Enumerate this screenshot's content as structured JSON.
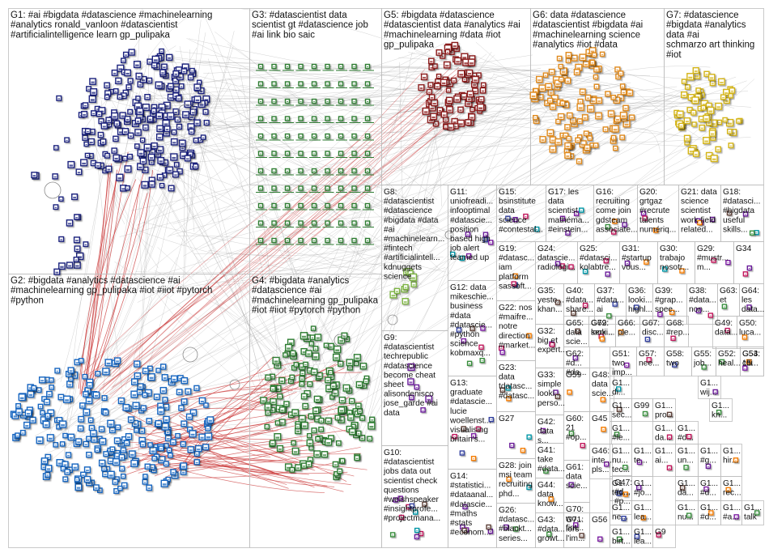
{
  "groups": [
    {
      "id": "G1",
      "lines": [
        "G1: #ai #bigdata #datascience #machinelearning",
        "#analytics ronald_vanloon #datascientist",
        "#artificialintelligence learn gp_pulipaka"
      ],
      "color": "#1f2a6b"
    },
    {
      "id": "G2",
      "lines": [
        "G2: #bigdata #analytics #datascience #ai",
        "#machinelearning gp_pulipaka #iot #iiot #pytorch",
        "#python"
      ],
      "color": "#1f6fb5"
    },
    {
      "id": "G3",
      "lines": [
        "G3: #datascientist data",
        "scientist gt #datascience job",
        "#ai link bio saic"
      ],
      "color": "#2e7d32"
    },
    {
      "id": "G4",
      "lines": [
        "G4: #bigdata #analytics",
        "#datascience #ai",
        "#machinelearning gp_pulipaka",
        "#iot #iiot #pytorch #python"
      ],
      "color": "#2e9d2e"
    },
    {
      "id": "G5",
      "lines": [
        "G5: #bigdata #datascience",
        "#datascientist data #analytics #ai",
        "#machinelearning #data #iot",
        "gp_pulipaka"
      ],
      "color": "#a01818"
    },
    {
      "id": "G6",
      "lines": [
        "G6: data #datascience",
        "#datascientist #bigdata #ai",
        "#machinelearning science",
        "#analytics #iot #data"
      ],
      "color": "#e08a1e"
    },
    {
      "id": "G7",
      "lines": [
        "G7: #datascience",
        "#bigdata #analytics",
        "data #ai",
        "schmarzo art thinking",
        "#iot"
      ],
      "color": "#e6c21a"
    },
    {
      "id": "G8",
      "lines": [
        "G8:",
        "#datascientist",
        "#datascience",
        "#bigdata #data",
        "#ai",
        "#machinelearn...",
        "#fintech",
        "#artificialintell...",
        "kdnuggets",
        "science"
      ],
      "color": "#8bc34a"
    },
    {
      "id": "G9",
      "lines": [
        "G9:",
        "#datascientist",
        "techrepublic",
        "#datascience",
        "become cheat",
        "sheet",
        "alisondenisco",
        "jose_garde #ai",
        "data"
      ],
      "color": "#7b3fa0"
    },
    {
      "id": "G10",
      "lines": [
        "G10:",
        "#datascientist",
        "jobs data out",
        "scientist check",
        "questions",
        "#welshspeaker",
        "#insightprofe...",
        "#projectmana..."
      ],
      "color": "#555555"
    },
    {
      "id": "G11",
      "lines": [
        "G11:",
        "uniofreadi...",
        "infooptimal",
        "#datascie...",
        "position",
        "based high",
        "job alert",
        "teamed up"
      ],
      "color": "#999999"
    },
    {
      "id": "G12",
      "lines": [
        "G12: data",
        "mikeschie...",
        "business",
        "#data",
        "#datascie...",
        "#python",
        "science",
        "kobmaxq..."
      ],
      "color": "#999999"
    },
    {
      "id": "G13",
      "lines": [
        "G13:",
        "graduate",
        "#datascie...",
        "lucie",
        "woellenst...",
        "visualising",
        "britain's..."
      ],
      "color": "#999999"
    },
    {
      "id": "G14",
      "lines": [
        "G14:",
        "#statistici...",
        "#dataanal...",
        "#datascie...",
        "#maths",
        "#stats",
        "#econom..."
      ],
      "color": "#999999"
    },
    {
      "id": "G15",
      "lines": [
        "G15:",
        "bsinstitute",
        "data",
        "science",
        "#contestal..."
      ],
      "color": "#999999"
    },
    {
      "id": "G16",
      "lines": [
        "G16:",
        "recruiting",
        "come join",
        "gdsteam",
        "associate..."
      ],
      "color": "#999999"
    },
    {
      "id": "G17",
      "lines": [
        "G17: les",
        "data",
        "scientist",
        "mathéma...",
        "#einstein..."
      ],
      "color": "#999999"
    },
    {
      "id": "G18",
      "lines": [
        "G18:",
        "#datasci...",
        "#bigdata",
        "useful",
        "skills..."
      ],
      "color": "#999999"
    },
    {
      "id": "G19",
      "lines": [
        "G19:",
        "#datasc...",
        "iam",
        "platform",
        "sassoft..."
      ],
      "color": "#999999"
    },
    {
      "id": "G20",
      "lines": [
        "G20:",
        "grtgaz",
        "#recrute",
        "talents",
        "numériq..."
      ],
      "color": "#999999"
    },
    {
      "id": "G21",
      "lines": [
        "G21: data",
        "science",
        "scientist",
        "work field",
        "related..."
      ],
      "color": "#999999"
    },
    {
      "id": "G22",
      "lines": [
        "G22: nos",
        "#maifre...",
        "notre",
        "direction",
        "#market..."
      ],
      "color": "#999999"
    },
    {
      "id": "G23",
      "lines": [
        "G23:",
        "data",
        "tdatasc...",
        "#datasc..."
      ],
      "color": "#999999"
    },
    {
      "id": "G24",
      "lines": [
        "G24:",
        "datascie...",
        "radiologi..."
      ],
      "color": "#999999"
    },
    {
      "id": "G25",
      "lines": [
        "G25:",
        "#datasci...",
        "kolabtre..."
      ],
      "color": "#999999"
    },
    {
      "id": "G26",
      "lines": [
        "G26:",
        "#datasc...",
        "#blackt...",
        "series..."
      ],
      "color": "#999999"
    },
    {
      "id": "G27",
      "lines": [
        "G27"
      ],
      "color": "#999999"
    },
    {
      "id": "G28",
      "lines": [
        "G28: join",
        "msi team",
        "recruiting",
        "phd..."
      ],
      "color": "#999999"
    },
    {
      "id": "G29",
      "lines": [
        "G29:",
        "#mustr...",
        "m..."
      ],
      "color": "#999999"
    },
    {
      "id": "G30",
      "lines": [
        "G30:",
        "trabajo",
        "nosotr..."
      ],
      "color": "#999999"
    },
    {
      "id": "G31",
      "lines": [
        "G31:",
        "#startup",
        "vous..."
      ],
      "color": "#999999"
    },
    {
      "id": "G32",
      "lines": [
        "G32:",
        "big et",
        "expert..."
      ],
      "color": "#999999"
    },
    {
      "id": "G33",
      "lines": [
        "G33:",
        "simple",
        "looki...",
        "perso..."
      ],
      "color": "#999999"
    },
    {
      "id": "G34",
      "lines": [
        "G34"
      ],
      "color": "#999999"
    },
    {
      "id": "G35",
      "lines": [
        "G35:",
        "yeste...",
        "khan..."
      ],
      "color": "#999999"
    },
    {
      "id": "G36",
      "lines": [
        "G36:",
        "looki...",
        "highl..."
      ],
      "color": "#999999"
    },
    {
      "id": "G37",
      "lines": [
        "G37:",
        "#data...",
        "ai"
      ],
      "color": "#999999"
    },
    {
      "id": "G38",
      "lines": [
        "G38:",
        "#data...",
        "non..."
      ],
      "color": "#999999"
    },
    {
      "id": "G39",
      "lines": [
        "G39:",
        "#grap...",
        "spee..."
      ],
      "color": "#999999"
    },
    {
      "id": "G40",
      "lines": [
        "G40:",
        "#data...",
        "share..."
      ],
      "color": "#999999"
    },
    {
      "id": "G41",
      "lines": [
        "G41:",
        "take",
        "#data..."
      ],
      "color": "#999999"
    },
    {
      "id": "G42",
      "lines": [
        "G42:",
        "data",
        "s..."
      ],
      "color": "#999999"
    },
    {
      "id": "G43",
      "lines": [
        "G43:",
        "#data...",
        "growt..."
      ],
      "color": "#999999"
    },
    {
      "id": "G44",
      "lines": [
        "G44:",
        "data",
        "know..."
      ],
      "color": "#999999"
    },
    {
      "id": "G45",
      "lines": [
        "G45"
      ],
      "color": "#999999"
    },
    {
      "id": "G46",
      "lines": [
        "G46:",
        "inte...",
        "pls..."
      ],
      "color": "#999999"
    },
    {
      "id": "G47",
      "lines": [
        "G47:",
        "#d...",
        "#p..."
      ],
      "color": "#999999"
    },
    {
      "id": "G48",
      "lines": [
        "G48:",
        "data",
        "scie..."
      ],
      "color": "#999999"
    },
    {
      "id": "G49",
      "lines": [
        "G49:",
        "data..."
      ],
      "color": "#999999"
    },
    {
      "id": "G50",
      "lines": [
        "G50:",
        "luca..."
      ],
      "color": "#999999"
    },
    {
      "id": "G51",
      "lines": [
        "G51:",
        "two",
        "imp..."
      ],
      "color": "#999999"
    },
    {
      "id": "G52",
      "lines": [
        "G52:",
        "heal..."
      ],
      "color": "#999999"
    },
    {
      "id": "G53",
      "lines": [
        "G53:",
        "citi"
      ],
      "color": "#999999"
    },
    {
      "id": "G54",
      "lines": [
        "G54:",
        "15..."
      ],
      "color": "#999999"
    },
    {
      "id": "G55",
      "lines": [
        "G55:",
        "job..."
      ],
      "color": "#999999"
    },
    {
      "id": "G56",
      "lines": [
        "G56"
      ],
      "color": "#999999"
    },
    {
      "id": "G57",
      "lines": [
        "G57:",
        "nee..."
      ],
      "color": "#999999"
    },
    {
      "id": "G58",
      "lines": [
        "G58:",
        "two"
      ],
      "color": "#999999"
    },
    {
      "id": "G59",
      "lines": [
        "G59"
      ],
      "color": "#999999"
    },
    {
      "id": "G60",
      "lines": [
        "G60:",
        "21",
        "#op..."
      ],
      "color": "#999999"
    },
    {
      "id": "G61",
      "lines": [
        "G61:",
        "data",
        "scie..."
      ],
      "color": "#999999"
    },
    {
      "id": "G62",
      "lines": [
        "G62:",
        "#d...",
        "#da..."
      ],
      "color": "#999999"
    },
    {
      "id": "G63",
      "lines": [
        "G63:",
        "et"
      ],
      "color": "#999999"
    },
    {
      "id": "G64",
      "lines": [
        "G64:",
        "les",
        "data..."
      ],
      "color": "#999999"
    },
    {
      "id": "G65",
      "lines": [
        "G65:",
        "data",
        "scie..."
      ],
      "color": "#999999"
    },
    {
      "id": "G66",
      "lines": [
        "G66:",
        "ple..."
      ],
      "color": "#999999"
    },
    {
      "id": "G67",
      "lines": [
        "G67:",
        "disc..."
      ],
      "color": "#999999"
    },
    {
      "id": "G68",
      "lines": [
        "G68:",
        "#rep..."
      ],
      "color": "#999999"
    },
    {
      "id": "G69",
      "lines": [
        "G69:",
        "looki..."
      ],
      "color": "#999999"
    },
    {
      "id": "G70",
      "lines": [
        "G70:",
        "wo...",
        "fint..."
      ],
      "color": "#999999"
    },
    {
      "id": "G71",
      "lines": [
        "G71:",
        "lors",
        "l'im..."
      ],
      "color": "#999999"
    },
    {
      "id": "G72",
      "lines": [
        "G72:",
        "seni..."
      ],
      "color": "#999999"
    },
    {
      "id": "G1a",
      "lines": [
        "G1...",
        "di..."
      ],
      "color": "#999999"
    },
    {
      "id": "G1b",
      "lines": [
        "G1...",
        "wij..."
      ],
      "color": "#999999"
    },
    {
      "id": "G1c",
      "lines": [
        "G1...",
        "sec..."
      ],
      "color": "#999999"
    },
    {
      "id": "G1d",
      "lines": [
        "G1...",
        "pro..."
      ],
      "color": "#999999"
    },
    {
      "id": "G1e",
      "lines": [
        "G1...",
        "kn..."
      ],
      "color": "#999999"
    },
    {
      "id": "G1f",
      "lines": [
        "G1...",
        "te..."
      ],
      "color": "#999999"
    },
    {
      "id": "G1g",
      "lines": [
        "G1...",
        "#le..."
      ],
      "color": "#999999"
    },
    {
      "id": "G1h",
      "lines": [
        "G1...",
        "da..."
      ],
      "color": "#999999"
    },
    {
      "id": "G1i",
      "lines": [
        "G1...",
        "#d..."
      ],
      "color": "#999999"
    },
    {
      "id": "G1j",
      "lines": [
        "G1...",
        "nu...",
        "tec..."
      ],
      "color": "#999999"
    },
    {
      "id": "G1k",
      "lines": [
        "G1...",
        "ai..."
      ],
      "color": "#999999"
    },
    {
      "id": "G1l",
      "lines": [
        "G1...",
        "un..."
      ],
      "color": "#999999"
    },
    {
      "id": "G1m",
      "lines": [
        "G1...",
        "#g..."
      ],
      "color": "#999999"
    },
    {
      "id": "G1n",
      "lines": [
        "G1...",
        "hir..."
      ],
      "color": "#999999"
    },
    {
      "id": "G1o",
      "lines": [
        "G1...",
        "tod..."
      ],
      "color": "#999999"
    },
    {
      "id": "G1p",
      "lines": [
        "G1...",
        "#jo..."
      ],
      "color": "#999999"
    },
    {
      "id": "G1q",
      "lines": [
        "G1...",
        "da..."
      ],
      "color": "#999999"
    },
    {
      "id": "G1r",
      "lines": [
        "G1...",
        "#d..."
      ],
      "color": "#999999"
    },
    {
      "id": "G1s",
      "lines": [
        "G1...",
        "ne..."
      ],
      "color": "#999999"
    },
    {
      "id": "G1t",
      "lines": [
        "G1...",
        "lea..."
      ],
      "color": "#999999"
    },
    {
      "id": "G1u",
      "lines": [
        "G1...",
        "rec..."
      ],
      "color": "#999999"
    },
    {
      "id": "G1v",
      "lines": [
        "G1...",
        "lea..."
      ],
      "color": "#999999"
    },
    {
      "id": "G1w",
      "lines": [
        "G1...",
        "nu..."
      ],
      "color": "#999999"
    },
    {
      "id": "G1x",
      "lines": [
        "G1...",
        "#d..."
      ],
      "color": "#999999"
    },
    {
      "id": "G1y",
      "lines": [
        "G1...",
        "#a..."
      ],
      "color": "#999999"
    },
    {
      "id": "G1z",
      "lines": [
        "G1...",
        "birt..."
      ],
      "color": "#999999"
    },
    {
      "id": "G9b",
      "lines": [
        "G9"
      ],
      "color": "#999999"
    },
    {
      "id": "G1talk",
      "lines": [
        "G1...",
        "talk"
      ],
      "color": "#999999"
    },
    {
      "id": "G99",
      "lines": [
        "G99"
      ],
      "color": "#999999"
    }
  ]
}
